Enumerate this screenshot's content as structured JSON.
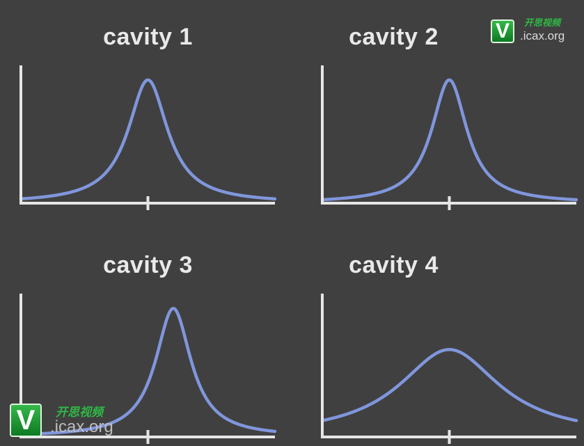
{
  "chart_data": [
    {
      "type": "line",
      "title": "cavity 1",
      "xlabel": "",
      "ylabel": "",
      "xlim": [
        -1,
        1
      ],
      "ylim": [
        0,
        1.05
      ],
      "center_tick": 0,
      "series": [
        {
          "peak_x": 0,
          "peak_y": 1.0,
          "width": 0.19
        }
      ],
      "line_color": "#8096dc",
      "grid": false
    },
    {
      "type": "line",
      "title": "cavity 2",
      "xlabel": "",
      "ylabel": "",
      "xlim": [
        -1,
        1
      ],
      "ylim": [
        0,
        1.05
      ],
      "center_tick": 0,
      "series": [
        {
          "peak_x": 0,
          "peak_y": 1.0,
          "width": 0.17
        }
      ],
      "line_color": "#8096dc",
      "grid": false
    },
    {
      "type": "line",
      "title": "cavity 3",
      "xlabel": "",
      "ylabel": "",
      "xlim": [
        -1,
        1
      ],
      "ylim": [
        0,
        1.05
      ],
      "center_tick": 0,
      "series": [
        {
          "peak_x": 0.2,
          "peak_y": 1.0,
          "width": 0.17
        }
      ],
      "line_color": "#8096dc",
      "grid": false
    },
    {
      "type": "line",
      "title": "cavity 4",
      "xlabel": "",
      "ylabel": "",
      "xlim": [
        -1,
        1
      ],
      "ylim": [
        0,
        1.05
      ],
      "center_tick": 0,
      "series": [
        {
          "peak_x": 0,
          "peak_y": 0.68,
          "width": 0.48
        }
      ],
      "line_color": "#8096dc",
      "grid": false
    }
  ],
  "watermarks": [
    {
      "badge": "V",
      "cn_text": "开思视频",
      "url": ".icax.org"
    },
    {
      "badge": "V",
      "cn_text": "开思视频",
      "url": ".icax.org"
    }
  ]
}
